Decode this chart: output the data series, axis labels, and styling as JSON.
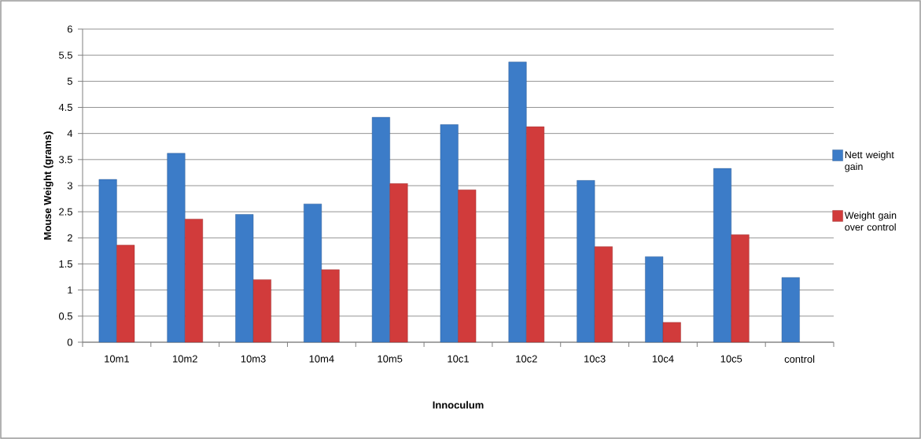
{
  "chart_data": {
    "type": "bar",
    "xlabel": "Innoculum",
    "ylabel": "Mouse Weight (grams)",
    "categories": [
      "10m1",
      "10m2",
      "10m3",
      "10m4",
      "10m5",
      "10c1",
      "10c2",
      "10c3",
      "10c4",
      "10c5",
      "control"
    ],
    "series": [
      {
        "name": "Nett weight gain",
        "color": "#3c7cc8",
        "values": [
          3.12,
          3.62,
          2.45,
          2.65,
          4.31,
          4.17,
          5.37,
          3.1,
          1.64,
          3.33,
          1.24
        ]
      },
      {
        "name": "Weight gain over control",
        "color": "#d13b3b",
        "values": [
          1.86,
          2.36,
          1.2,
          1.39,
          3.04,
          2.92,
          4.13,
          1.83,
          0.38,
          2.06,
          null
        ]
      }
    ],
    "ylim": [
      0,
      6
    ],
    "yticks": [
      0,
      0.5,
      1,
      1.5,
      2,
      2.5,
      3,
      3.5,
      4,
      4.5,
      5,
      5.5,
      6
    ],
    "grid": "y",
    "legend": "right"
  }
}
